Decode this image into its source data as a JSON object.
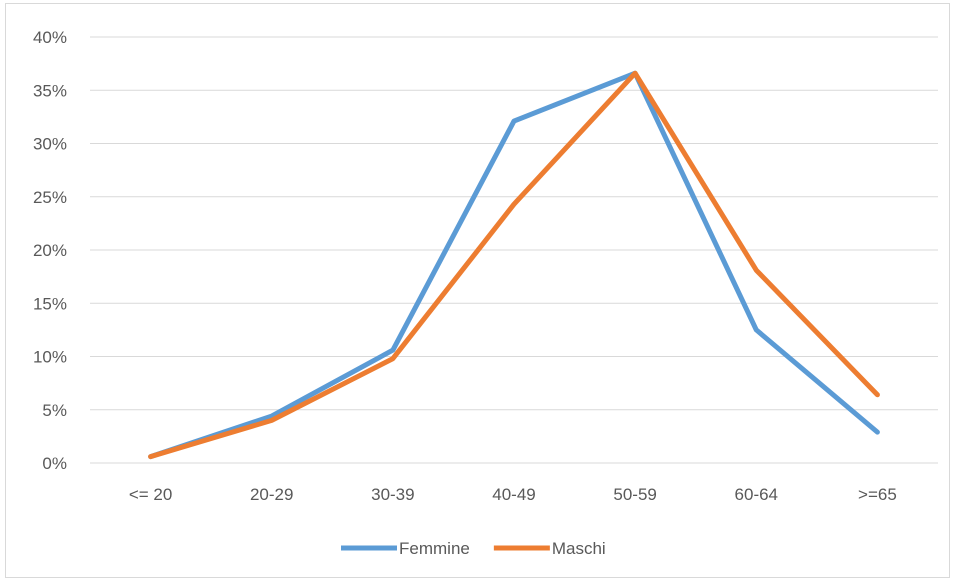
{
  "chart_data": {
    "type": "line",
    "categories": [
      "<= 20",
      "20-29",
      "30-39",
      "40-49",
      "50-59",
      "60-64",
      ">=65"
    ],
    "series": [
      {
        "name": "Femmine",
        "color": "#5b9bd5",
        "values": [
          0.6,
          4.4,
          10.6,
          32.1,
          36.6,
          12.5,
          2.9
        ]
      },
      {
        "name": "Maschi",
        "color": "#ed7d31",
        "values": [
          0.6,
          4.0,
          9.8,
          24.3,
          36.6,
          18.1,
          6.4
        ]
      }
    ],
    "y_ticks": [
      "0%",
      "5%",
      "10%",
      "15%",
      "20%",
      "25%",
      "30%",
      "35%",
      "40%"
    ],
    "ylim": [
      0,
      40
    ],
    "grid": true,
    "legend_position": "bottom"
  }
}
